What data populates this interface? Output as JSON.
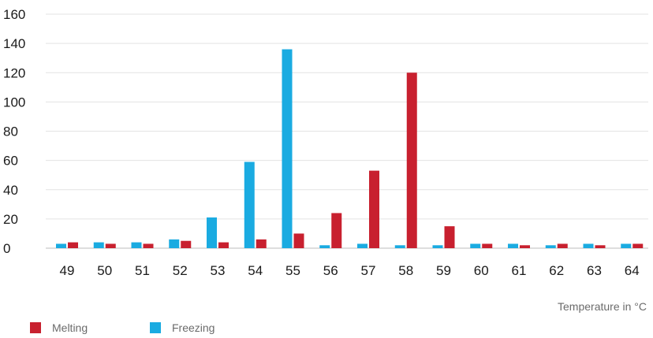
{
  "chart_data": {
    "type": "bar",
    "title": "",
    "xlabel": "Temperature in °C",
    "ylabel": "",
    "ylim": [
      0,
      160
    ],
    "yticks": [
      0,
      20,
      40,
      60,
      80,
      100,
      120,
      140,
      160
    ],
    "grid": true,
    "legend_position": "bottom-left",
    "categories": [
      "49",
      "50",
      "51",
      "52",
      "53",
      "54",
      "55",
      "56",
      "57",
      "58",
      "59",
      "60",
      "61",
      "62",
      "63",
      "64"
    ],
    "series": [
      {
        "name": "Freezing",
        "color": "#1aabe1",
        "values": [
          3,
          4,
          4,
          6,
          21,
          59,
          136,
          2,
          3,
          2,
          2,
          3,
          3,
          2,
          3,
          3
        ]
      },
      {
        "name": "Melting",
        "color": "#c8202f",
        "values": [
          4,
          3,
          3,
          5,
          4,
          6,
          10,
          24,
          53,
          120,
          15,
          3,
          2,
          3,
          2,
          3
        ]
      }
    ],
    "legend_order": [
      "Melting",
      "Freezing"
    ]
  }
}
